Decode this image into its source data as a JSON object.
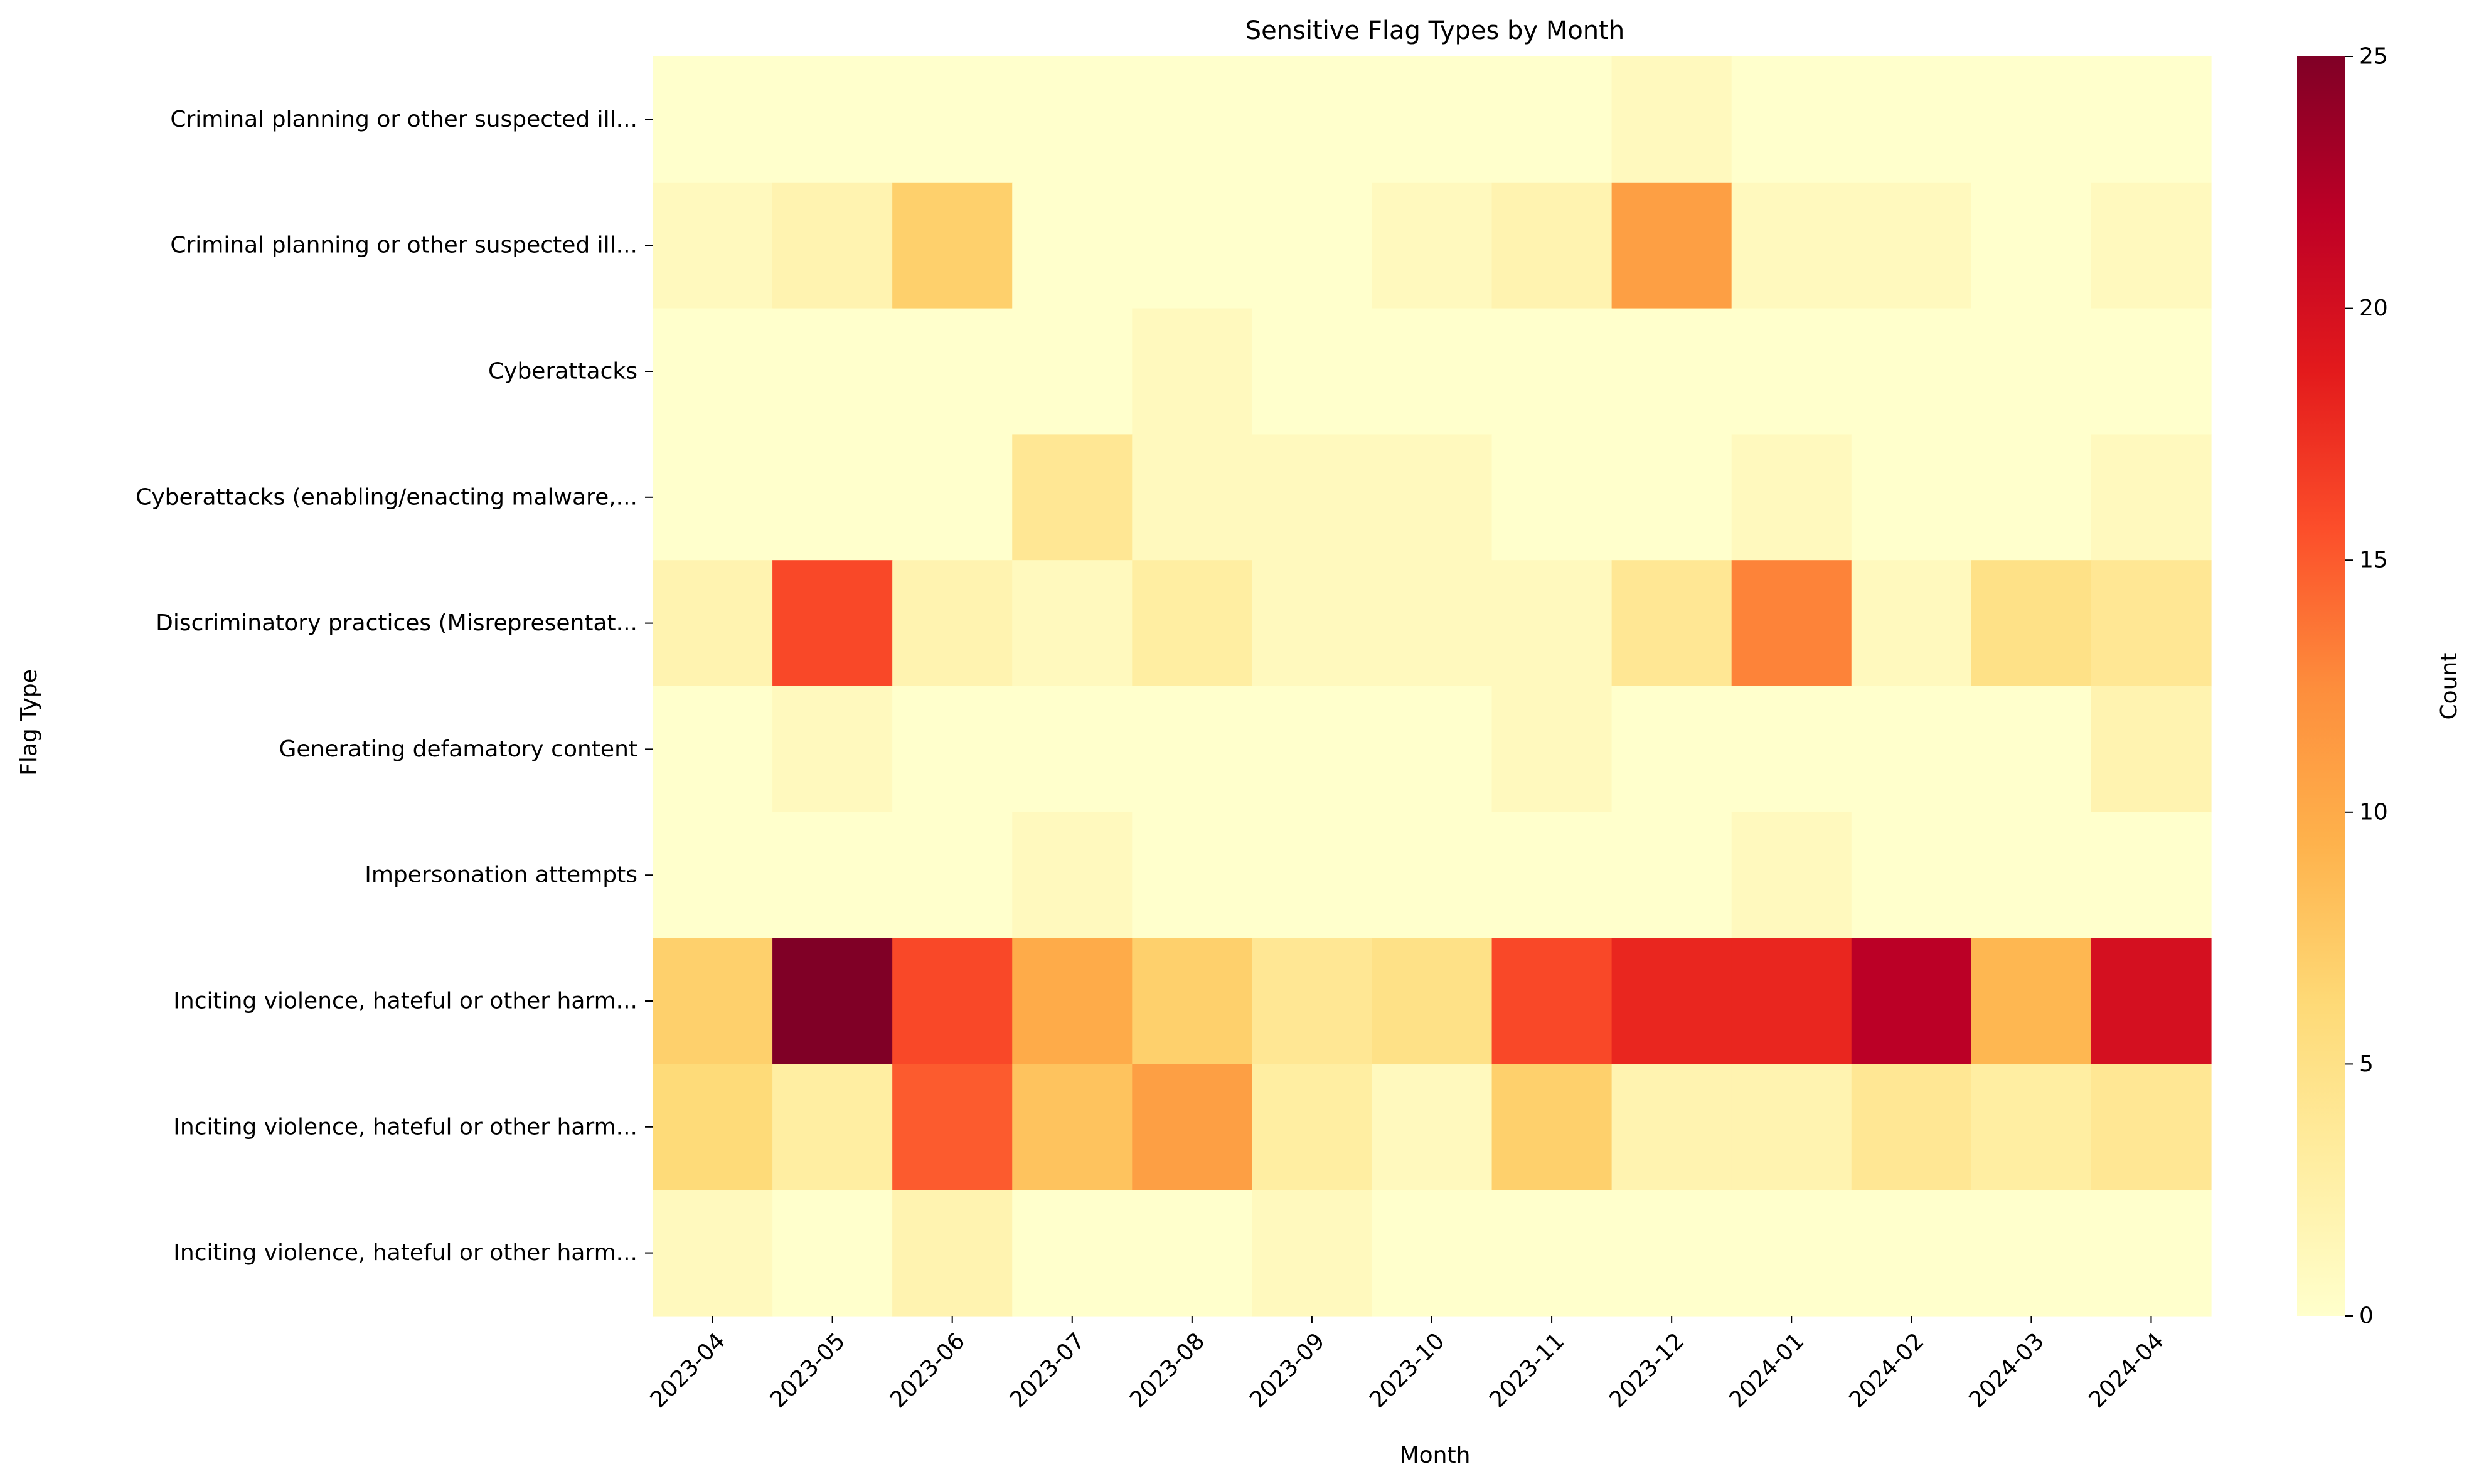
{
  "chart_data": {
    "type": "heatmap",
    "title": "Sensitive Flag Types by Month",
    "xlabel": "Month",
    "ylabel": "Flag Type",
    "colorbar_label": "Count",
    "colormap": "YlOrRd",
    "vmin": 0,
    "vmax": 25,
    "colorbar_ticks": [
      0,
      5,
      10,
      15,
      20,
      25
    ],
    "x": [
      "2023-04",
      "2023-05",
      "2023-06",
      "2023-07",
      "2023-08",
      "2023-09",
      "2023-10",
      "2023-11",
      "2023-12",
      "2024-01",
      "2024-02",
      "2024-03",
      "2024-04"
    ],
    "y": [
      "Criminal planning or other suspected ill...",
      "Criminal planning or other suspected ill...",
      "Cyberattacks",
      "Cyberattacks (enabling/enacting malware,...",
      "Discriminatory practices (Misrepresentat...",
      "Generating defamatory content",
      "Impersonation attempts",
      "Inciting violence, hateful or other harm...",
      "Inciting violence, hateful or other harm...",
      "Inciting violence, hateful or other harm..."
    ],
    "values": [
      [
        0,
        0,
        0,
        0,
        0,
        0,
        0,
        0,
        1,
        0,
        0,
        0,
        0
      ],
      [
        1,
        2,
        7,
        0,
        0,
        0,
        1,
        2,
        11,
        1,
        1,
        0,
        1
      ],
      [
        0,
        0,
        0,
        0,
        1,
        0,
        0,
        0,
        0,
        0,
        0,
        0,
        0
      ],
      [
        0,
        0,
        0,
        4,
        1,
        1,
        1,
        0,
        0,
        1,
        0,
        0,
        1
      ],
      [
        2,
        16,
        2,
        1,
        3,
        1,
        1,
        1,
        4,
        13,
        1,
        5,
        4
      ],
      [
        0,
        1,
        0,
        0,
        0,
        0,
        0,
        1,
        0,
        0,
        0,
        0,
        2
      ],
      [
        0,
        0,
        0,
        1,
        0,
        0,
        0,
        0,
        0,
        1,
        0,
        0,
        0
      ],
      [
        7,
        25,
        16,
        10,
        7,
        4,
        5,
        16,
        18,
        18,
        22,
        9,
        20
      ],
      [
        6,
        3,
        15,
        8,
        11,
        3,
        1,
        7,
        2,
        2,
        4,
        3,
        4
      ],
      [
        1,
        0,
        2,
        0,
        0,
        1,
        0,
        0,
        0,
        0,
        0,
        0,
        0
      ]
    ]
  }
}
